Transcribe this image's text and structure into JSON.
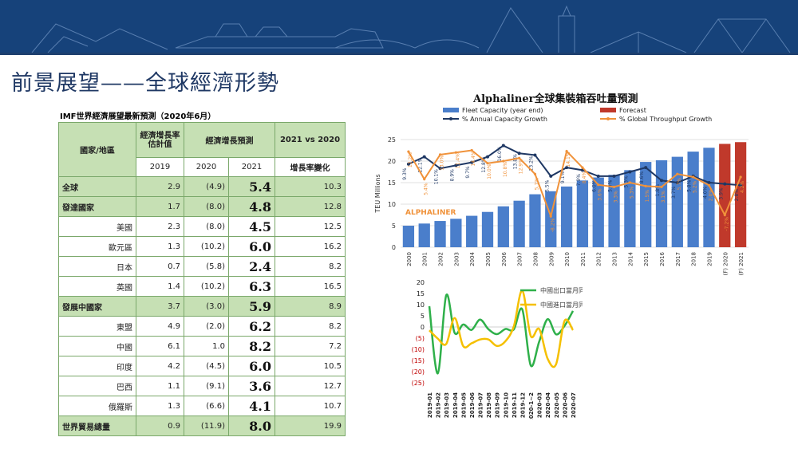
{
  "title": "前景展望——全球經濟形勢",
  "table": {
    "caption": "IMF世界經濟展望最新預測（2020年6月）",
    "headers": {
      "region": "國家/地區",
      "est": "經濟增長率估計值",
      "forecast": "經濟增長預測",
      "compare": "2021 vs 2020",
      "y2019": "2019",
      "y2020": "2020",
      "y2021": "2021",
      "change": "增長率變化"
    },
    "rows": [
      {
        "name": "全球",
        "v2019": "2.9",
        "v2020": "(4.9)",
        "v2021": "5.4",
        "change": "10.3",
        "group": true
      },
      {
        "name": "發達國家",
        "v2019": "1.7",
        "v2020": "(8.0)",
        "v2021": "4.8",
        "change": "12.8",
        "group": true
      },
      {
        "name": "美國",
        "v2019": "2.3",
        "v2020": "(8.0)",
        "v2021": "4.5",
        "change": "12.5",
        "group": false
      },
      {
        "name": "歐元區",
        "v2019": "1.3",
        "v2020": "(10.2)",
        "v2021": "6.0",
        "change": "16.2",
        "group": false
      },
      {
        "name": "日本",
        "v2019": "0.7",
        "v2020": "(5.8)",
        "v2021": "2.4",
        "change": "8.2",
        "group": false
      },
      {
        "name": "英國",
        "v2019": "1.4",
        "v2020": "(10.2)",
        "v2021": "6.3",
        "change": "16.5",
        "group": false
      },
      {
        "name": "發展中國家",
        "v2019": "3.7",
        "v2020": "(3.0)",
        "v2021": "5.9",
        "change": "8.9",
        "group": true
      },
      {
        "name": "東盟",
        "v2019": "4.9",
        "v2020": "(2.0)",
        "v2021": "6.2",
        "change": "8.2",
        "group": false
      },
      {
        "name": "中國",
        "v2019": "6.1",
        "v2020": "1.0",
        "v2021": "8.2",
        "change": "7.2",
        "group": false
      },
      {
        "name": "印度",
        "v2019": "4.2",
        "v2020": "(4.5)",
        "v2021": "6.0",
        "change": "10.5",
        "group": false
      },
      {
        "name": "巴西",
        "v2019": "1.1",
        "v2020": "(9.1)",
        "v2021": "3.6",
        "change": "12.7",
        "group": false
      },
      {
        "name": "俄羅斯",
        "v2019": "1.3",
        "v2020": "(6.6)",
        "v2021": "4.1",
        "change": "10.7",
        "group": false
      },
      {
        "name": "世界貿易總量",
        "v2019": "0.9",
        "v2020": "(11.9)",
        "v2021": "8.0",
        "change": "19.9",
        "group": true
      }
    ]
  },
  "chart_data": [
    {
      "type": "bar",
      "title": "Alphaliner全球集裝箱吞吐量預測",
      "watermark": "ALPHALINER",
      "ylabel": "TEU Millions",
      "xlabel": "",
      "ylim": [
        0,
        25
      ],
      "yticks": [
        0,
        5,
        10,
        15,
        20,
        25
      ],
      "grid": true,
      "legend_position": "top",
      "categories": [
        "2000",
        "2001",
        "2002",
        "2003",
        "2004",
        "2005",
        "2006",
        "2007",
        "2008",
        "2009",
        "2010",
        "2011",
        "2012",
        "2013",
        "2014",
        "2015",
        "2016",
        "2017",
        "2018",
        "2019",
        "(F) 2020",
        "(F) 2021"
      ],
      "series": [
        {
          "name": "Fleet Capacity (year end)",
          "kind": "bar",
          "color": "#4a7ecb",
          "values": [
            5.0,
            5.5,
            6.1,
            6.6,
            7.3,
            8.2,
            9.5,
            10.8,
            12.3,
            13.0,
            14.1,
            15.5,
            16.2,
            16.8,
            17.9,
            19.8,
            20.2,
            21.0,
            22.2,
            23.1,
            null,
            null
          ]
        },
        {
          "name": "Forecast",
          "kind": "bar",
          "color": "#c0392b",
          "values": [
            null,
            null,
            null,
            null,
            null,
            null,
            null,
            null,
            null,
            null,
            null,
            null,
            null,
            null,
            null,
            null,
            null,
            null,
            null,
            null,
            24.0,
            24.4
          ]
        },
        {
          "name": "% Annual Capacity Growth",
          "kind": "line",
          "color": "#1f3864",
          "values": [
            19.3,
            21.0,
            18.3,
            19.0,
            19.7,
            21.0,
            23.6,
            21.8,
            21.4,
            16.5,
            18.5,
            17.9,
            16.5,
            16.5,
            17.5,
            18.5,
            15.5,
            15.0,
            16.5,
            15.0,
            14.7,
            14.4
          ],
          "labels": [
            "9.3%",
            "12.1%",
            "10.1%",
            "8.9%",
            "9.7%",
            "12.8%",
            "16.0%",
            "13.8%",
            "13.2%",
            "5.5%",
            "9.1%",
            "7.9%",
            "6.0%",
            "5.0%",
            "5.3%",
            "8.6%",
            "1.8%",
            "3.7%",
            "5.8%",
            "4.0%",
            "3.9%",
            "2.8%"
          ]
        },
        {
          "name": "% Global Throughput Growth",
          "kind": "line",
          "color": "#f0923a",
          "values": [
            22.2,
            15.8,
            21.5,
            22.0,
            22.5,
            19.5,
            20.0,
            20.7,
            17.0,
            7.2,
            22.3,
            18.5,
            14.5,
            14.0,
            15.0,
            14.2,
            14.0,
            17.0,
            16.3,
            14.4,
            7.5,
            16.3
          ],
          "labels": [
            "12.2%",
            "5.4%",
            "13.0%",
            "11.4%",
            "14.4%",
            "10.0%",
            "10.8%",
            "12.9%",
            "5.7%",
            "-8.2%",
            "14.1%",
            "8.4%",
            "3.6%",
            "3.3%",
            "5.3%",
            "1.5%",
            "3.1%",
            "5.7%",
            "5.2%",
            "2.0%",
            "-7.2%",
            "4.2%"
          ]
        }
      ]
    },
    {
      "type": "line",
      "title": "",
      "xlabel": "",
      "ylabel": "",
      "ylim": [
        -25,
        20
      ],
      "yticks": [
        20,
        15,
        10,
        5,
        0,
        -5,
        -10,
        -15,
        -20,
        -25
      ],
      "ytick_labels": [
        "20",
        "15",
        "10",
        "5",
        "0",
        "(5)",
        "(10)",
        "(15)",
        "(20)",
        "(25)"
      ],
      "grid": false,
      "legend_position": "top-right",
      "categories": [
        "2019-01",
        "2019-02",
        "2019-03",
        "2019-04",
        "2019-05",
        "2019-06",
        "2019-07",
        "2019-08",
        "2019-09",
        "2019-10",
        "2019-11",
        "2019-12",
        "2020-1~2",
        "2020-03",
        "2020-04",
        "2020-05",
        "2020-06",
        "2020-07"
      ],
      "series": [
        {
          "name": "中國出口當月同比",
          "color": "#2fb04a",
          "values": [
            9.3,
            -20.8,
            14.2,
            -2.7,
            1.1,
            -1.3,
            3.3,
            -1.0,
            -3.2,
            -0.9,
            -1.1,
            7.9,
            -17.2,
            -6.6,
            3.5,
            -3.3,
            0.5,
            7.2
          ]
        },
        {
          "name": "中國進口當月同比",
          "color": "#f5c000",
          "values": [
            -1.5,
            -5.2,
            -7.6,
            4.0,
            -8.5,
            -7.3,
            -5.6,
            -5.6,
            -8.5,
            -6.4,
            0.3,
            16.3,
            -4.0,
            -0.9,
            -14.2,
            -16.7,
            2.7,
            -1.4
          ]
        }
      ]
    }
  ]
}
